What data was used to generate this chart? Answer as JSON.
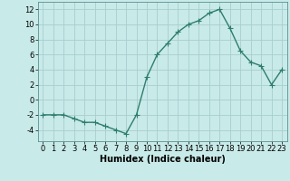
{
  "x": [
    0,
    1,
    2,
    3,
    4,
    5,
    6,
    7,
    8,
    9,
    10,
    11,
    12,
    13,
    14,
    15,
    16,
    17,
    18,
    19,
    20,
    21,
    22,
    23
  ],
  "y": [
    -2,
    -2,
    -2,
    -2.5,
    -3,
    -3,
    -3.5,
    -4,
    -4.5,
    -2,
    3,
    6,
    7.5,
    9,
    10,
    10.5,
    11.5,
    12,
    9.5,
    6.5,
    5,
    4.5,
    2,
    4
  ],
  "line_color": "#2e7d6e",
  "marker": "+",
  "marker_size": 4,
  "background_color": "#c8eae8",
  "grid_color": "#a8cece",
  "xlabel": "Humidex (Indice chaleur)",
  "xlabel_fontsize": 7,
  "tick_fontsize": 6,
  "ylim": [
    -5.5,
    13
  ],
  "xlim": [
    -0.5,
    23.5
  ],
  "yticks": [
    -4,
    -2,
    0,
    2,
    4,
    6,
    8,
    10,
    12
  ],
  "xticks": [
    0,
    1,
    2,
    3,
    4,
    5,
    6,
    7,
    8,
    9,
    10,
    11,
    12,
    13,
    14,
    15,
    16,
    17,
    18,
    19,
    20,
    21,
    22,
    23
  ],
  "linewidth": 1.0
}
